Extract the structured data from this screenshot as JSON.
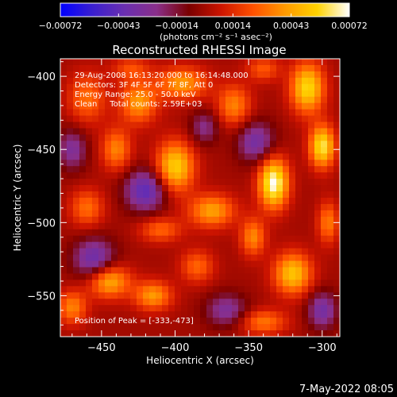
{
  "chart_data": {
    "type": "heatmap",
    "title": "Reconstructed RHESSI Image",
    "xlabel": "Heliocentric X (arcsec)",
    "ylabel": "Heliocentric Y (arcsec)",
    "xlim": [
      -478,
      -288
    ],
    "ylim": [
      -578,
      -388
    ],
    "x_ticks": [
      -450,
      -400,
      -350,
      -300
    ],
    "y_ticks": [
      -400,
      -450,
      -500,
      -550
    ],
    "x_tick_labels": [
      "−450",
      "−400",
      "−350",
      "−300"
    ],
    "y_tick_labels": [
      "−400",
      "−450",
      "−500",
      "−550"
    ],
    "colorbar": {
      "min": -0.00072,
      "max": 0.00072,
      "ticks": [
        -0.00072,
        -0.00043,
        -0.00014,
        0.00014,
        0.00043,
        0.00072
      ],
      "tick_labels": [
        "−0.00072",
        "−0.00043",
        "−0.00014",
        "0.00014",
        "0.00043",
        "0.00072"
      ],
      "unit_line": "(photons cm⁻² s⁻¹ asec⁻²)",
      "colors": [
        "#0000ff",
        "#3a1fcf",
        "#6a2fb0",
        "#8a2f8a",
        "#7a0000",
        "#cc1400",
        "#ff5000",
        "#ff9a00",
        "#ffd200",
        "#ffffff"
      ]
    },
    "annotations": [
      "29-Aug-2008 16:13:20.000 to 16:14:48.000",
      "Detectors: 3F 4F 5F 6F 7F 8F, Att 0",
      "Energy Range: 25.0 - 50.0 keV",
      "Clean     Total counts: 2.59E+03"
    ],
    "peak_label": "Position of Peak = [-333,-473]",
    "peak": {
      "x": -333,
      "y": -473
    },
    "blobs": [
      {
        "x": -333,
        "y": -473,
        "sx": 7,
        "sy": 12,
        "v": 0.00072
      },
      {
        "x": -400,
        "y": -462,
        "sx": 9,
        "sy": 12,
        "v": 0.00056
      },
      {
        "x": -425,
        "y": -418,
        "sx": 9,
        "sy": 10,
        "v": 0.0004
      },
      {
        "x": -395,
        "y": -405,
        "sx": 12,
        "sy": 8,
        "v": 0.0004
      },
      {
        "x": -460,
        "y": -415,
        "sx": 9,
        "sy": 12,
        "v": 0.0003
      },
      {
        "x": -440,
        "y": -450,
        "sx": 7,
        "sy": 10,
        "v": 0.00035
      },
      {
        "x": -360,
        "y": -420,
        "sx": 8,
        "sy": 10,
        "v": 0.00035
      },
      {
        "x": -310,
        "y": -408,
        "sx": 8,
        "sy": 12,
        "v": 0.00058
      },
      {
        "x": -300,
        "y": -448,
        "sx": 6,
        "sy": 10,
        "v": 0.00062
      },
      {
        "x": -375,
        "y": -492,
        "sx": 11,
        "sy": 8,
        "v": 0.00042
      },
      {
        "x": -320,
        "y": -535,
        "sx": 9,
        "sy": 10,
        "v": 0.00052
      },
      {
        "x": -445,
        "y": -540,
        "sx": 10,
        "sy": 8,
        "v": 0.00048
      },
      {
        "x": -415,
        "y": -550,
        "sx": 9,
        "sy": 7,
        "v": 0.0004
      },
      {
        "x": -470,
        "y": -558,
        "sx": 7,
        "sy": 8,
        "v": 0.00035
      },
      {
        "x": -347,
        "y": -510,
        "sx": 6,
        "sy": 9,
        "v": 0.00036
      },
      {
        "x": -460,
        "y": -490,
        "sx": 8,
        "sy": 9,
        "v": 0.0003
      },
      {
        "x": -340,
        "y": -568,
        "sx": 11,
        "sy": 6,
        "v": 0.00032
      },
      {
        "x": -385,
        "y": -530,
        "sx": 8,
        "sy": 8,
        "v": 0.00028
      },
      {
        "x": -410,
        "y": -505,
        "sx": 10,
        "sy": 6,
        "v": 0.00028
      },
      {
        "x": -296,
        "y": -500,
        "sx": 5,
        "sy": 10,
        "v": 0.00033
      },
      {
        "x": -430,
        "y": -395,
        "sx": 9,
        "sy": 6,
        "v": 0.00022
      },
      {
        "x": -340,
        "y": -395,
        "sx": 8,
        "sy": 6,
        "v": 0.00025
      },
      {
        "x": -420,
        "y": -478,
        "sx": 10,
        "sy": 10,
        "v": -0.00045
      },
      {
        "x": -455,
        "y": -525,
        "sx": 10,
        "sy": 10,
        "v": -0.0004
      },
      {
        "x": -345,
        "y": -445,
        "sx": 9,
        "sy": 10,
        "v": -0.00035
      },
      {
        "x": -365,
        "y": -560,
        "sx": 10,
        "sy": 8,
        "v": -0.0003
      },
      {
        "x": -300,
        "y": -560,
        "sx": 7,
        "sy": 9,
        "v": -0.00035
      },
      {
        "x": -470,
        "y": -450,
        "sx": 7,
        "sy": 10,
        "v": -0.0003
      },
      {
        "x": -380,
        "y": -435,
        "sx": 7,
        "sy": 8,
        "v": -0.00025
      }
    ]
  },
  "footer": {
    "date_stamp": "7-May-2022 08:05"
  }
}
